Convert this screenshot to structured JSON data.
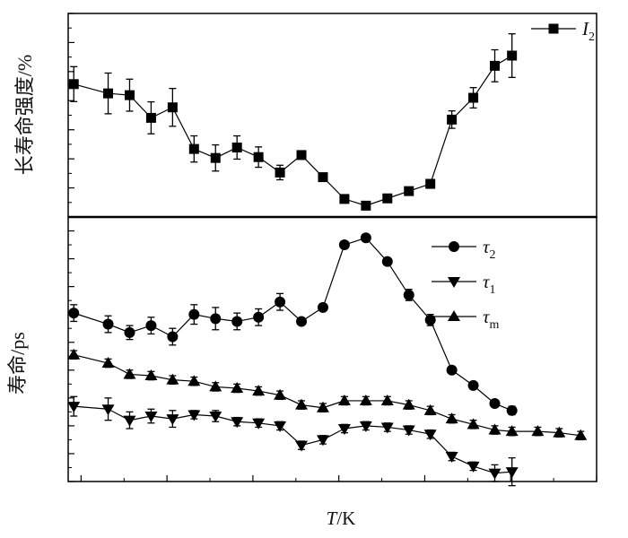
{
  "chart_data": [
    {
      "type": "line",
      "panel": "top",
      "ylabel": "长寿命强度/%",
      "ylim": [
        10,
        80
      ],
      "yticks": [
        "10",
        "20",
        "30",
        "40",
        "50",
        "60",
        "70",
        "80"
      ],
      "xlim": [
        270,
        1500
      ],
      "legend_position": "top-right",
      "series": [
        {
          "name": "I",
          "subscript": "2",
          "marker": "square",
          "x": [
            283,
            363,
            413,
            463,
            513,
            563,
            613,
            663,
            713,
            763,
            813,
            863,
            913,
            963,
            1013,
            1063,
            1113,
            1163,
            1213,
            1263,
            1303
          ],
          "values": [
            55.7,
            52.5,
            51.9,
            44.1,
            47.7,
            33.4,
            30.3,
            33.9,
            30.6,
            25.3,
            31.3,
            23.7,
            16.2,
            13.9,
            16.4,
            18.9,
            21.4,
            43.5,
            51.0,
            62.0,
            65.5
          ],
          "errors": [
            6,
            7,
            5.5,
            5.5,
            6.5,
            4.5,
            4.5,
            4,
            3.5,
            2.5,
            1,
            0,
            0,
            0,
            0,
            0,
            1.5,
            3,
            3.5,
            5.5,
            7.5
          ]
        }
      ]
    },
    {
      "type": "line",
      "panel": "bottom",
      "xlabel_italic": "T",
      "xlabel_rest": "/K",
      "ylabel": "寿命/ps",
      "ylim": [
        60,
        250
      ],
      "yticks": [
        "60",
        "80",
        "100",
        "120",
        "140",
        "160",
        "180",
        "200",
        "220",
        "240"
      ],
      "xlim": [
        270,
        1500
      ],
      "xticks": [
        "300",
        "500",
        "700",
        "900",
        "1 100",
        "1 300",
        "1 500"
      ],
      "legend_position": "top-right",
      "series": [
        {
          "name": "τ",
          "subscript": "2",
          "marker": "circle",
          "x": [
            283,
            363,
            413,
            463,
            513,
            563,
            613,
            663,
            713,
            763,
            813,
            863,
            913,
            963,
            1013,
            1063,
            1113,
            1163,
            1213,
            1263,
            1303
          ],
          "values": [
            181,
            173,
            167,
            172,
            164,
            180,
            177,
            175,
            178,
            189,
            175,
            185,
            230,
            235,
            218,
            194,
            176,
            140,
            129,
            116,
            111
          ],
          "errors": [
            6,
            6,
            5,
            6,
            6,
            7,
            8,
            6,
            6,
            6,
            2,
            2,
            2,
            2,
            2,
            4,
            4,
            2,
            2,
            2,
            3
          ]
        },
        {
          "name": "τ",
          "subscript": "1",
          "marker": "triangle-down",
          "x": [
            283,
            363,
            413,
            463,
            513,
            563,
            613,
            663,
            713,
            763,
            813,
            863,
            913,
            963,
            1013,
            1063,
            1113,
            1163,
            1213,
            1263,
            1303
          ],
          "values": [
            114,
            112,
            104,
            107,
            105,
            108,
            107,
            103,
            102,
            100,
            86,
            90,
            98,
            100,
            99,
            97,
            94,
            78,
            71,
            66,
            67
          ],
          "errors": [
            7,
            8,
            6,
            5,
            6,
            3,
            4,
            3,
            3,
            3,
            3,
            3,
            3,
            3,
            3,
            3,
            3,
            3,
            3,
            6,
            10
          ]
        },
        {
          "name": "τ",
          "subscript": "m",
          "marker": "triangle-up",
          "x": [
            283,
            363,
            413,
            463,
            513,
            563,
            613,
            663,
            713,
            763,
            813,
            863,
            913,
            963,
            1013,
            1063,
            1113,
            1163,
            1213,
            1263,
            1303,
            1363,
            1413,
            1463
          ],
          "values": [
            151,
            145,
            137,
            136,
            133,
            132,
            128,
            127,
            125,
            122,
            115,
            113,
            118,
            118,
            118,
            115,
            111,
            105,
            101,
            97,
            96,
            96,
            95,
            93
          ],
          "errors": [
            3,
            3,
            3,
            3,
            3,
            3,
            3,
            3,
            3,
            3,
            3,
            3,
            3,
            3,
            3,
            3,
            3,
            3,
            3,
            3,
            3,
            3,
            3,
            3
          ]
        }
      ]
    }
  ]
}
